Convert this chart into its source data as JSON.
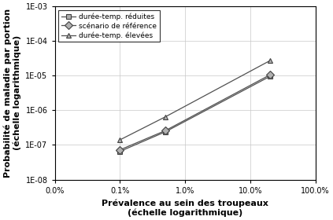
{
  "series": [
    {
      "label": "durée-temp. réduites",
      "x": [
        0.001,
        0.005,
        0.2
      ],
      "y": [
        6.5e-08,
        2.4e-07,
        9.5e-06
      ],
      "marker": "s",
      "color": "#808080",
      "linestyle": "-"
    },
    {
      "label": "scénario de référence",
      "x": [
        0.001,
        0.005,
        0.2
      ],
      "y": [
        7.2e-08,
        2.6e-07,
        1.05e-05
      ],
      "marker": "D",
      "color": "#808080",
      "linestyle": "-"
    },
    {
      "label": "durée-temp. élevées",
      "x": [
        0.001,
        0.005,
        0.2
      ],
      "y": [
        1.4e-07,
        6.5e-07,
        2.7e-05
      ],
      "marker": "^",
      "color": "#808080",
      "linestyle": "-"
    }
  ],
  "xlabel_line1": "Prévalence au sein des troupeaux",
  "xlabel_line2": "(échelle logarithmique)",
  "ylabel_line1": "Probabilité de maladie par portion",
  "ylabel_line2": "(échelle logarithmique)",
  "xlim": [
    0.0001,
    1.0
  ],
  "ylim": [
    1e-08,
    0.001
  ],
  "xtick_labels": [
    "0.0%",
    "0.1%",
    "1.0%",
    "10.0%",
    "100.0%"
  ],
  "xtick_vals": [
    0.0001,
    0.001,
    0.01,
    0.1,
    1.0
  ],
  "ytick_labels": [
    "1E-08",
    "1E-07",
    "1E-06",
    "1E-05",
    "1E-04",
    "1E-03"
  ],
  "ytick_vals": [
    1e-08,
    1e-07,
    1e-06,
    1e-05,
    0.0001,
    0.001
  ],
  "background_color": "#ffffff",
  "grid_color": "#c8c8c8"
}
